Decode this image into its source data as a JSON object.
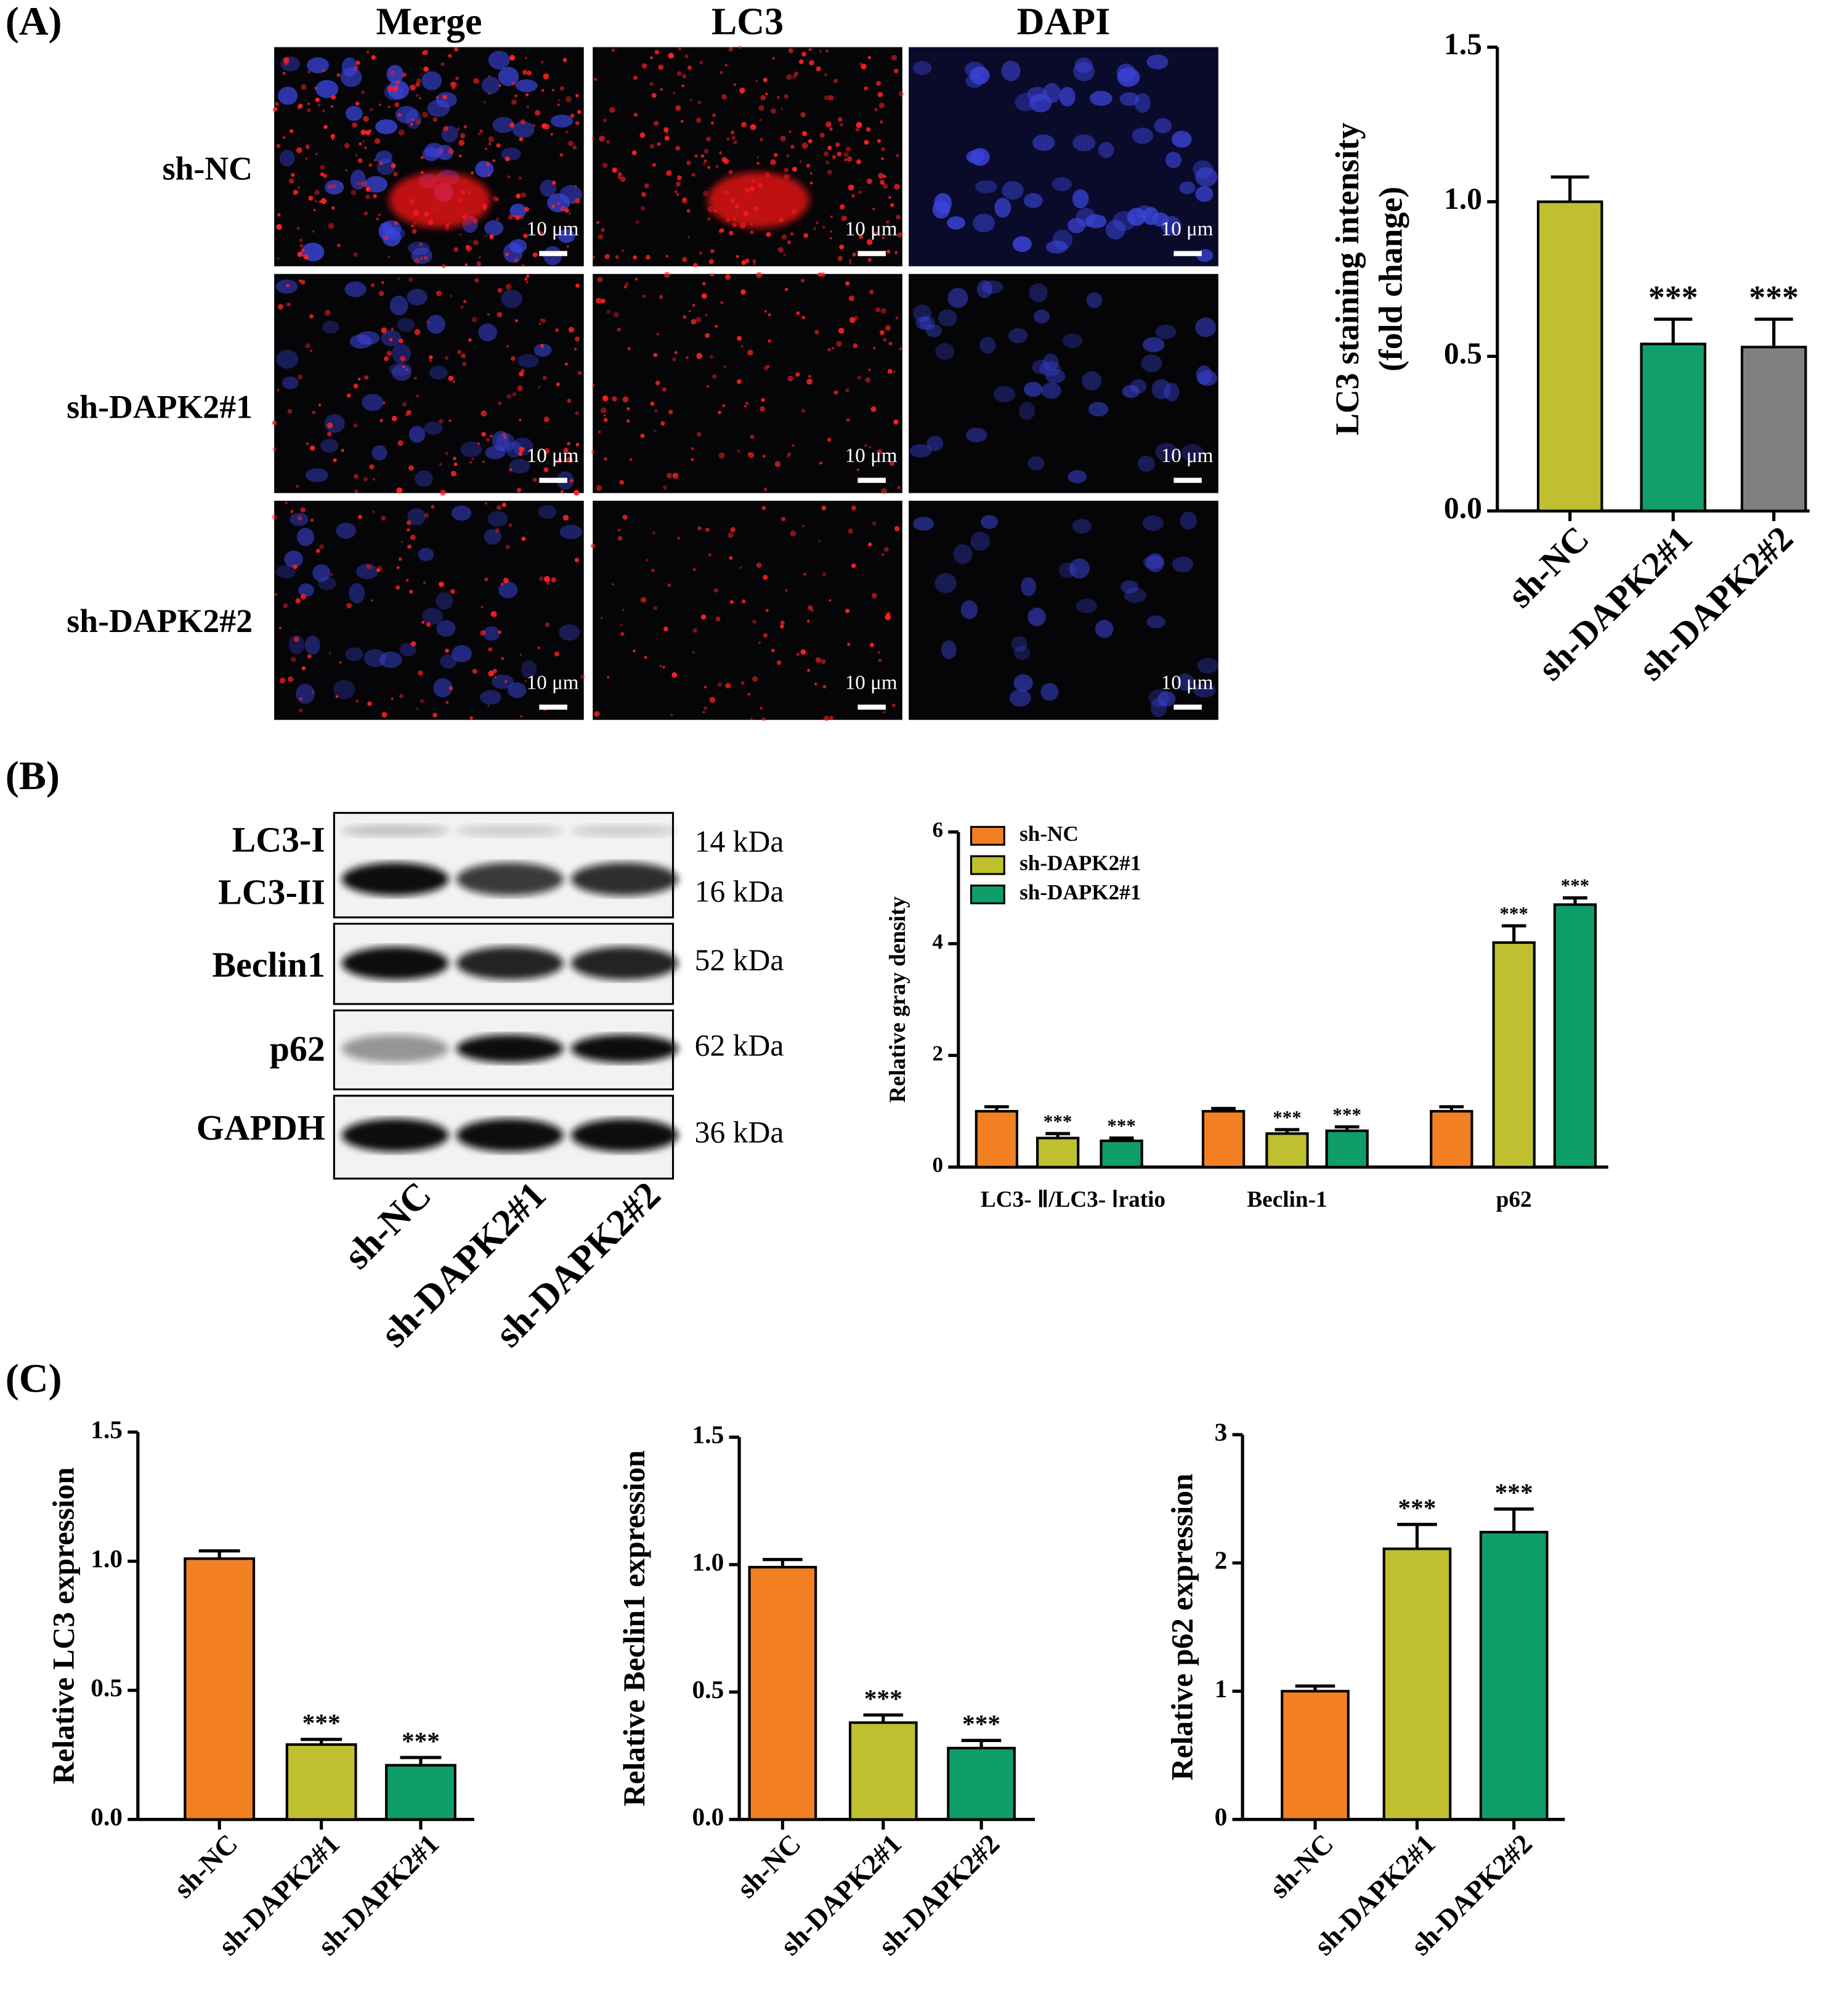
{
  "panels": {
    "a": "(A)",
    "b": "(B)",
    "c": "(C)"
  },
  "microscopy": {
    "columns": [
      "Merge",
      "LC3",
      "DAPI"
    ],
    "rows": [
      "sh-NC",
      "sh-DAPK2#1",
      "sh-DAPK2#2"
    ],
    "scale_bar": "10 μm"
  },
  "western_blot": {
    "bands": [
      {
        "label": "LC3-I",
        "size": "14 kDa"
      },
      {
        "label": "LC3-II",
        "size": "16 kDa"
      },
      {
        "label": "Beclin1",
        "size": "52 kDa"
      },
      {
        "label": "p62",
        "size": "62 kDa"
      },
      {
        "label": "GAPDH",
        "size": "36 kDa"
      }
    ],
    "lanes": [
      "sh-NC",
      "sh-DAPK2#1",
      "sh-DAPK2#2"
    ]
  },
  "chart_data": [
    {
      "type": "bar",
      "ylabel": [
        "LC3 staining intensity",
        "(fold change)"
      ],
      "categories": [
        "sh-NC",
        "sh-DAPK2#1",
        "sh-DAPK2#2"
      ],
      "values": [
        1.0,
        0.54,
        0.53
      ],
      "errors": [
        0.08,
        0.08,
        0.09
      ],
      "significance": [
        null,
        "***",
        "***"
      ],
      "colors": [
        "#bfbf30",
        "#129e68",
        "#808080"
      ],
      "ylim": [
        0,
        1.5
      ],
      "yticks": [
        {
          "value": 0,
          "label": "0.0"
        },
        {
          "value": 0.5,
          "label": "0.5"
        },
        {
          "value": 1,
          "label": "1.0"
        },
        {
          "value": 1.5,
          "label": "1.5"
        }
      ]
    },
    {
      "type": "grouped-bar",
      "ylabel": "Relative gray density",
      "categories": [
        "LC3- Ⅱ/LC3- Ⅰratio",
        "Beclin-1",
        "p62"
      ],
      "series": [
        {
          "name": "sh-NC",
          "color": "#f28022",
          "values": [
            1.0,
            1.0,
            1.0
          ],
          "errors": [
            0.08,
            0.05,
            0.08
          ],
          "significance": [
            null,
            null,
            null
          ]
        },
        {
          "name": "sh-DAPK2#1",
          "color": "#bfc030",
          "values": [
            0.52,
            0.6,
            4.02
          ],
          "errors": [
            0.08,
            0.07,
            0.3
          ],
          "significance": [
            "***",
            "***",
            "***"
          ]
        },
        {
          "name": "sh-DAPK2#1",
          "color": "#0f9e68",
          "values": [
            0.47,
            0.65,
            4.7
          ],
          "errors": [
            0.05,
            0.07,
            0.12
          ],
          "significance": [
            "***",
            "***",
            "***"
          ]
        }
      ],
      "ylim": [
        0,
        6
      ],
      "yticks": [
        0,
        2,
        4,
        6
      ],
      "legend": "top-left"
    },
    {
      "type": "bar",
      "ylabel": "Relative LC3 expression",
      "categories": [
        "sh-NC",
        "sh-DAPK2#1",
        "sh-DAPK2#1"
      ],
      "values": [
        1.01,
        0.29,
        0.21
      ],
      "errors": [
        0.03,
        0.02,
        0.03
      ],
      "significance": [
        null,
        "***",
        "***"
      ],
      "colors": [
        "#f28022",
        "#bfc030",
        "#0f9e68"
      ],
      "ylim": [
        0,
        1.5
      ],
      "yticks": [
        {
          "value": 0,
          "label": "0.0"
        },
        {
          "value": 0.5,
          "label": "0.5"
        },
        {
          "value": 1,
          "label": "1.0"
        },
        {
          "value": 1.5,
          "label": "1.5"
        }
      ]
    },
    {
      "type": "bar",
      "ylabel": "Relative Beclin1 expression",
      "categories": [
        "sh-NC",
        "sh-DAPK2#1",
        "sh-DAPK2#2"
      ],
      "values": [
        0.99,
        0.38,
        0.28
      ],
      "errors": [
        0.03,
        0.03,
        0.03
      ],
      "significance": [
        null,
        "***",
        "***"
      ],
      "colors": [
        "#f28022",
        "#bfc030",
        "#0f9e68"
      ],
      "ylim": [
        0,
        1.5
      ],
      "yticks": [
        {
          "value": 0,
          "label": "0.0"
        },
        {
          "value": 0.5,
          "label": "0.5"
        },
        {
          "value": 1,
          "label": "1.0"
        },
        {
          "value": 1.5,
          "label": "1.5"
        }
      ]
    },
    {
      "type": "bar",
      "ylabel": "Relative p62 expression",
      "categories": [
        "sh-NC",
        "sh-DAPK2#1",
        "sh-DAPK2#2"
      ],
      "values": [
        1.0,
        2.11,
        2.24
      ],
      "errors": [
        0.04,
        0.19,
        0.18
      ],
      "significance": [
        null,
        "***",
        "***"
      ],
      "colors": [
        "#f28022",
        "#bfc030",
        "#0f9e68"
      ],
      "ylim": [
        0,
        3
      ],
      "yticks": [
        0,
        1,
        2,
        3
      ]
    }
  ]
}
